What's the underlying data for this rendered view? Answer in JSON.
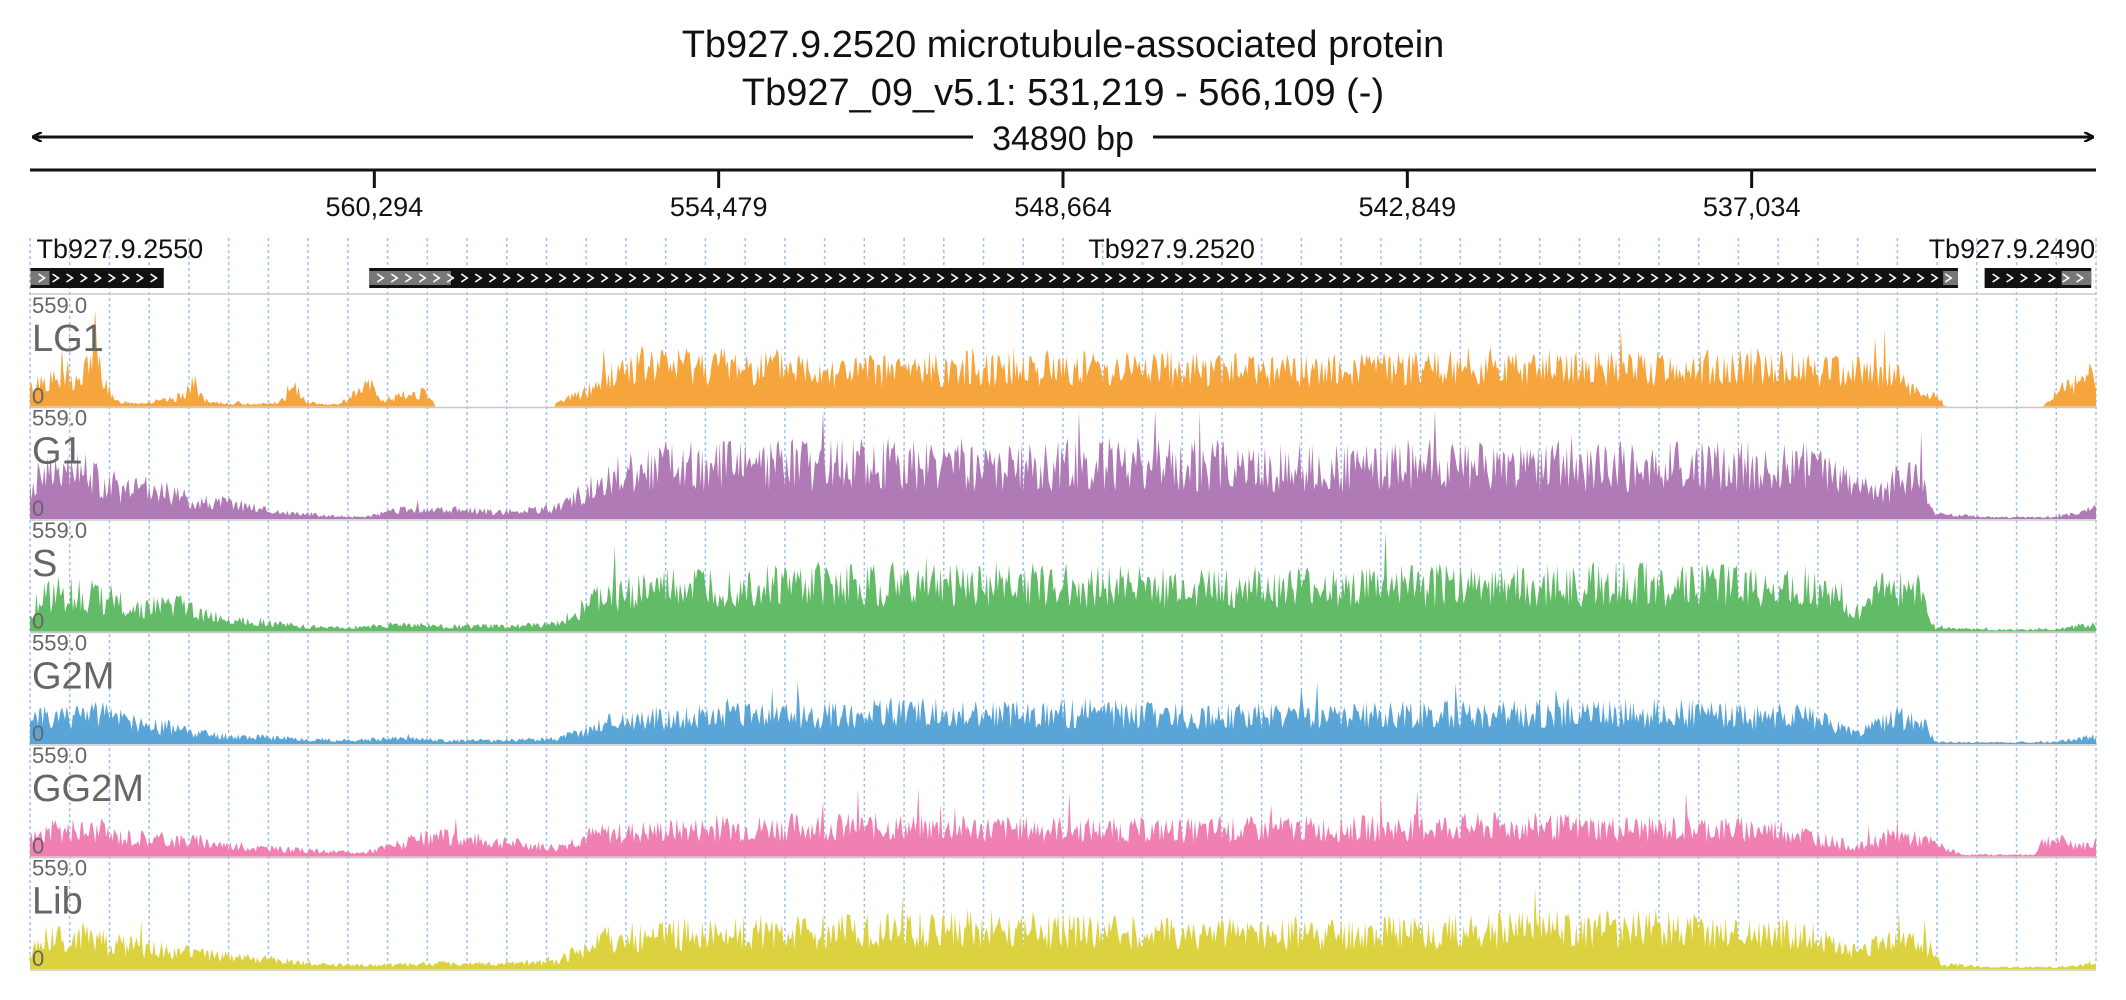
{
  "title": "Tb927.9.2520  microtubule-associated protein",
  "subtitle": "Tb927_09_v5.1: 531,219 - 566,109 (-)",
  "span_label": "34890 bp",
  "chart_data": {
    "type": "area",
    "x_domain": [
      566109,
      531219
    ],
    "x_reversed": true,
    "ticks": [
      {
        "pos": 560294,
        "label": "560,294"
      },
      {
        "pos": 554479,
        "label": "554,479"
      },
      {
        "pos": 548664,
        "label": "548,664"
      },
      {
        "pos": 542849,
        "label": "542,849"
      },
      {
        "pos": 537034,
        "label": "537,034"
      }
    ],
    "genes": [
      {
        "name": "Tb927.9.2550",
        "start": 566100,
        "end": 563850,
        "utr_start": 566100,
        "utr_end": 565780,
        "label_align": "start"
      },
      {
        "name": "Tb927.9.2520",
        "start": 560380,
        "end": 533550,
        "utr_start": 560380,
        "utr_end": 559000,
        "utr3_start": 533800,
        "utr3_end": 533550,
        "label_align": "middle"
      },
      {
        "name": "Tb927.9.2490",
        "start": 533100,
        "end": 531300,
        "utr3_start": 531800,
        "utr3_end": 531300,
        "label_align": "end"
      }
    ],
    "track_max_label": "559.0",
    "track_min_label": "0",
    "series": [
      {
        "name": "LG1",
        "color": "#f6a43c",
        "max": 559,
        "profile": [
          [
            0,
            90
          ],
          [
            0.5,
            150
          ],
          [
            2.5,
            140
          ],
          [
            3,
            320
          ],
          [
            3.6,
            170
          ],
          [
            4,
            30
          ],
          [
            5.5,
            20
          ],
          [
            7,
            40
          ],
          [
            8,
            130
          ],
          [
            8.5,
            20
          ],
          [
            11,
            15
          ],
          [
            12,
            20
          ],
          [
            13,
            110
          ],
          [
            13.4,
            25
          ],
          [
            14.5,
            10
          ],
          [
            15,
            15
          ],
          [
            16,
            90
          ],
          [
            16.5,
            120
          ],
          [
            17,
            30
          ],
          [
            18,
            60
          ],
          [
            19,
            80
          ],
          [
            19.5,
            20
          ],
          [
            25.5,
            20
          ],
          [
            27,
            90
          ],
          [
            28,
            170
          ],
          [
            29,
            230
          ],
          [
            32,
            240
          ],
          [
            35,
            230
          ],
          [
            38,
            220
          ],
          [
            40,
            200
          ],
          [
            43,
            210
          ],
          [
            46,
            230
          ],
          [
            50,
            220
          ],
          [
            54,
            220
          ],
          [
            58,
            210
          ],
          [
            62,
            200
          ],
          [
            66,
            220
          ],
          [
            70,
            230
          ],
          [
            74,
            220
          ],
          [
            78,
            210
          ],
          [
            82,
            230
          ],
          [
            86,
            220
          ],
          [
            90,
            205
          ],
          [
            91.5,
            60
          ],
          [
            92.5,
            60
          ],
          [
            92.6,
            5
          ],
          [
            97.5,
            5
          ],
          [
            98,
            70
          ],
          [
            99,
            140
          ],
          [
            99.8,
            200
          ],
          [
            100,
            150
          ]
        ],
        "gaps": [
          [
            19.6,
            25.4
          ],
          [
            92.7,
            97.4
          ]
        ]
      },
      {
        "name": "G1",
        "color": "#b07ab6",
        "max": 559,
        "profile": [
          [
            0,
            170
          ],
          [
            0.5,
            240
          ],
          [
            2.5,
            260
          ],
          [
            3,
            250
          ],
          [
            4.5,
            160
          ],
          [
            6,
            170
          ],
          [
            8,
            100
          ],
          [
            10,
            90
          ],
          [
            12,
            40
          ],
          [
            14.5,
            20
          ],
          [
            16,
            10
          ],
          [
            18,
            50
          ],
          [
            20,
            50
          ],
          [
            23,
            40
          ],
          [
            25.5,
            60
          ],
          [
            27,
            160
          ],
          [
            28,
            260
          ],
          [
            31,
            300
          ],
          [
            35,
            300
          ],
          [
            38,
            310
          ],
          [
            43,
            310
          ],
          [
            47,
            300
          ],
          [
            51,
            310
          ],
          [
            55,
            320
          ],
          [
            59,
            300
          ],
          [
            63,
            290
          ],
          [
            67,
            310
          ],
          [
            71,
            310
          ],
          [
            75,
            300
          ],
          [
            79,
            300
          ],
          [
            83,
            310
          ],
          [
            86,
            300
          ],
          [
            89,
            160
          ],
          [
            90,
            170
          ],
          [
            90.5,
            280
          ],
          [
            91.6,
            230
          ],
          [
            92.2,
            30
          ],
          [
            95,
            10
          ],
          [
            98,
            10
          ],
          [
            99,
            30
          ],
          [
            100,
            60
          ]
        ],
        "gaps": []
      },
      {
        "name": "S",
        "color": "#62bb66",
        "max": 559,
        "profile": [
          [
            0,
            80
          ],
          [
            0.5,
            200
          ],
          [
            2,
            220
          ],
          [
            3,
            200
          ],
          [
            4,
            180
          ],
          [
            5,
            130
          ],
          [
            7,
            150
          ],
          [
            9,
            80
          ],
          [
            11,
            60
          ],
          [
            13,
            30
          ],
          [
            15,
            20
          ],
          [
            18,
            40
          ],
          [
            20,
            30
          ],
          [
            23,
            30
          ],
          [
            25.5,
            40
          ],
          [
            27,
            160
          ],
          [
            28,
            210
          ],
          [
            31,
            250
          ],
          [
            35,
            260
          ],
          [
            38,
            270
          ],
          [
            43,
            270
          ],
          [
            47,
            280
          ],
          [
            51,
            260
          ],
          [
            55,
            250
          ],
          [
            59,
            250
          ],
          [
            63,
            240
          ],
          [
            67,
            260
          ],
          [
            71,
            260
          ],
          [
            75,
            270
          ],
          [
            79,
            280
          ],
          [
            83,
            260
          ],
          [
            86,
            260
          ],
          [
            88.5,
            120
          ],
          [
            89,
            180
          ],
          [
            90,
            250
          ],
          [
            91.5,
            230
          ],
          [
            92.2,
            20
          ],
          [
            95,
            10
          ],
          [
            98,
            10
          ],
          [
            99,
            30
          ],
          [
            100,
            40
          ]
        ],
        "gaps": []
      },
      {
        "name": "G2M",
        "color": "#5aa5d8",
        "max": 559,
        "profile": [
          [
            0,
            120
          ],
          [
            1,
            160
          ],
          [
            2.5,
            170
          ],
          [
            4,
            160
          ],
          [
            5,
            120
          ],
          [
            7,
            90
          ],
          [
            9,
            50
          ],
          [
            11,
            40
          ],
          [
            13,
            30
          ],
          [
            15,
            20
          ],
          [
            18,
            30
          ],
          [
            20,
            20
          ],
          [
            23,
            20
          ],
          [
            25.5,
            30
          ],
          [
            27,
            80
          ],
          [
            28,
            130
          ],
          [
            31,
            150
          ],
          [
            35,
            160
          ],
          [
            38,
            170
          ],
          [
            43,
            180
          ],
          [
            47,
            170
          ],
          [
            51,
            180
          ],
          [
            55,
            160
          ],
          [
            59,
            160
          ],
          [
            63,
            160
          ],
          [
            67,
            170
          ],
          [
            71,
            170
          ],
          [
            75,
            180
          ],
          [
            79,
            180
          ],
          [
            83,
            160
          ],
          [
            86,
            160
          ],
          [
            88.5,
            60
          ],
          [
            89.5,
            120
          ],
          [
            90.5,
            150
          ],
          [
            91.8,
            110
          ],
          [
            92.2,
            10
          ],
          [
            95,
            10
          ],
          [
            98,
            10
          ],
          [
            99,
            30
          ],
          [
            100,
            40
          ]
        ],
        "gaps": []
      },
      {
        "name": "GG2M",
        "color": "#f07fb2",
        "max": 559,
        "profile": [
          [
            0,
            100
          ],
          [
            1,
            140
          ],
          [
            3,
            150
          ],
          [
            4,
            120
          ],
          [
            6,
            100
          ],
          [
            8,
            90
          ],
          [
            10,
            60
          ],
          [
            12,
            40
          ],
          [
            14,
            30
          ],
          [
            16,
            20
          ],
          [
            19,
            100
          ],
          [
            20,
            110
          ],
          [
            22,
            90
          ],
          [
            24,
            70
          ],
          [
            25.5,
            50
          ],
          [
            27,
            120
          ],
          [
            29,
            140
          ],
          [
            33,
            160
          ],
          [
            37,
            170
          ],
          [
            41,
            170
          ],
          [
            45,
            160
          ],
          [
            49,
            160
          ],
          [
            53,
            150
          ],
          [
            57,
            150
          ],
          [
            61,
            160
          ],
          [
            65,
            160
          ],
          [
            69,
            170
          ],
          [
            73,
            170
          ],
          [
            77,
            160
          ],
          [
            81,
            160
          ],
          [
            85,
            150
          ],
          [
            88.5,
            50
          ],
          [
            89.5,
            100
          ],
          [
            90.5,
            120
          ],
          [
            92,
            80
          ],
          [
            93.5,
            10
          ],
          [
            97,
            10
          ],
          [
            97.5,
            100
          ],
          [
            98.5,
            80
          ],
          [
            99.5,
            60
          ],
          [
            100,
            80
          ]
        ],
        "gaps": []
      },
      {
        "name": "Lib",
        "color": "#dcd240",
        "max": 559,
        "profile": [
          [
            0,
            100
          ],
          [
            0.5,
            160
          ],
          [
            2,
            190
          ],
          [
            4,
            150
          ],
          [
            6,
            110
          ],
          [
            8,
            90
          ],
          [
            10,
            70
          ],
          [
            12,
            50
          ],
          [
            14,
            30
          ],
          [
            16,
            20
          ],
          [
            19,
            30
          ],
          [
            22,
            30
          ],
          [
            25.5,
            40
          ],
          [
            27,
            140
          ],
          [
            28,
            170
          ],
          [
            31,
            200
          ],
          [
            35,
            210
          ],
          [
            38,
            220
          ],
          [
            43,
            230
          ],
          [
            47,
            230
          ],
          [
            51,
            220
          ],
          [
            55,
            200
          ],
          [
            59,
            200
          ],
          [
            63,
            210
          ],
          [
            67,
            220
          ],
          [
            71,
            220
          ],
          [
            75,
            230
          ],
          [
            79,
            230
          ],
          [
            83,
            210
          ],
          [
            86,
            200
          ],
          [
            88.5,
            80
          ],
          [
            89.5,
            140
          ],
          [
            90.5,
            170
          ],
          [
            92,
            120
          ],
          [
            92.5,
            30
          ],
          [
            95,
            10
          ],
          [
            98,
            10
          ],
          [
            99,
            20
          ],
          [
            100,
            40
          ]
        ],
        "gaps": []
      }
    ]
  }
}
